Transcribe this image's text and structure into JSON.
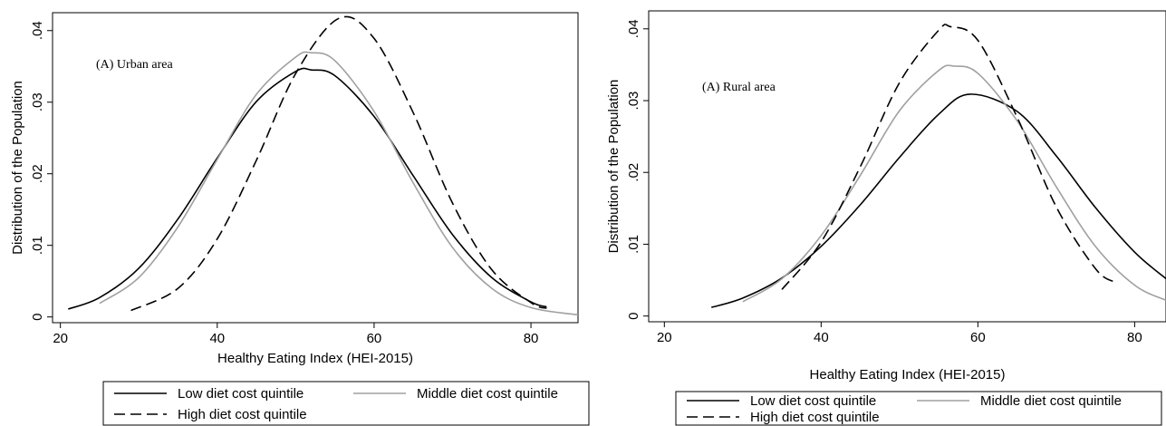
{
  "chart_data": [
    {
      "type": "line",
      "annotation": "(A) Urban area",
      "xlabel": "Healthy Eating Index (HEI-2015)",
      "ylabel": "Distribution of the Population",
      "xlim": [
        19,
        86
      ],
      "ylim": [
        -0.0008,
        0.0425
      ],
      "xticks": [
        20,
        40,
        60,
        80
      ],
      "xtick_labels": [
        "20",
        "40",
        "60",
        "80"
      ],
      "yticks": [
        0,
        0.01,
        0.02,
        0.03,
        0.04
      ],
      "ytick_labels": [
        "0",
        ".01",
        ".02",
        ".03",
        ".04"
      ],
      "legend_position": "bottom",
      "series": [
        {
          "name": "Low diet cost quintile",
          "style": "solid",
          "color": "#000000",
          "x": [
            21,
            25,
            30,
            35,
            40,
            45,
            50,
            52,
            55,
            60,
            65,
            70,
            75,
            80,
            82
          ],
          "y": [
            0.0011,
            0.0027,
            0.0068,
            0.0137,
            0.0222,
            0.0301,
            0.0343,
            0.0345,
            0.0337,
            0.028,
            0.0197,
            0.0115,
            0.0055,
            0.0021,
            0.0014
          ]
        },
        {
          "name": "Middle diet cost quintile",
          "style": "solid",
          "color": "#a0a0a0",
          "x": [
            25,
            30,
            35,
            40,
            45,
            50,
            52,
            55,
            60,
            65,
            70,
            75,
            80,
            86
          ],
          "y": [
            0.0019,
            0.0055,
            0.0126,
            0.022,
            0.0311,
            0.0363,
            0.0369,
            0.0358,
            0.0287,
            0.0187,
            0.0097,
            0.004,
            0.0013,
            0.0003
          ]
        },
        {
          "name": "High diet cost quintile",
          "style": "dashed",
          "color": "#000000",
          "x": [
            29,
            35,
            40,
            45,
            50,
            55.5,
            60,
            65,
            70,
            75,
            80,
            82
          ],
          "y": [
            0.0009,
            0.004,
            0.0109,
            0.0219,
            0.034,
            0.0417,
            0.0389,
            0.0285,
            0.0159,
            0.0066,
            0.002,
            0.0012
          ]
        }
      ]
    },
    {
      "type": "line",
      "annotation": "(A) Rural area",
      "xlabel": "Healthy Eating Index (HEI-2015)",
      "ylabel": "Distribution of the Population",
      "xlim": [
        18,
        84
      ],
      "ylim": [
        -0.0008,
        0.0425
      ],
      "xticks": [
        20,
        40,
        60,
        80
      ],
      "xtick_labels": [
        "20",
        "40",
        "60",
        "80"
      ],
      "yticks": [
        0,
        0.01,
        0.02,
        0.03,
        0.04
      ],
      "ytick_labels": [
        "0",
        ".01",
        ".02",
        ".03",
        ".04"
      ],
      "legend_position": "bottom",
      "series": [
        {
          "name": "Low diet cost quintile",
          "style": "solid",
          "color": "#000000",
          "x": [
            26,
            30,
            35,
            40,
            45,
            50,
            55,
            59,
            65,
            70,
            75,
            80,
            84
          ],
          "y": [
            0.0012,
            0.0025,
            0.0053,
            0.0097,
            0.0155,
            0.0221,
            0.0281,
            0.0309,
            0.0285,
            0.0223,
            0.0151,
            0.0089,
            0.0052
          ]
        },
        {
          "name": "Middle diet cost quintile",
          "style": "solid",
          "color": "#a0a0a0",
          "x": [
            30,
            35,
            40,
            45,
            50,
            55,
            57,
            60,
            65,
            70,
            75,
            80,
            84
          ],
          "y": [
            0.002,
            0.0052,
            0.0112,
            0.0196,
            0.0286,
            0.0342,
            0.0348,
            0.0338,
            0.0272,
            0.018,
            0.0097,
            0.0043,
            0.0022
          ]
        },
        {
          "name": "High diet cost quintile",
          "style": "dashed",
          "color": "#000000",
          "x": [
            35,
            40,
            45,
            50,
            55,
            56.5,
            60,
            65,
            70,
            75,
            77.5
          ],
          "y": [
            0.0037,
            0.0103,
            0.0208,
            0.0325,
            0.0398,
            0.0403,
            0.0384,
            0.0277,
            0.0152,
            0.0066,
            0.0047
          ]
        }
      ]
    }
  ]
}
